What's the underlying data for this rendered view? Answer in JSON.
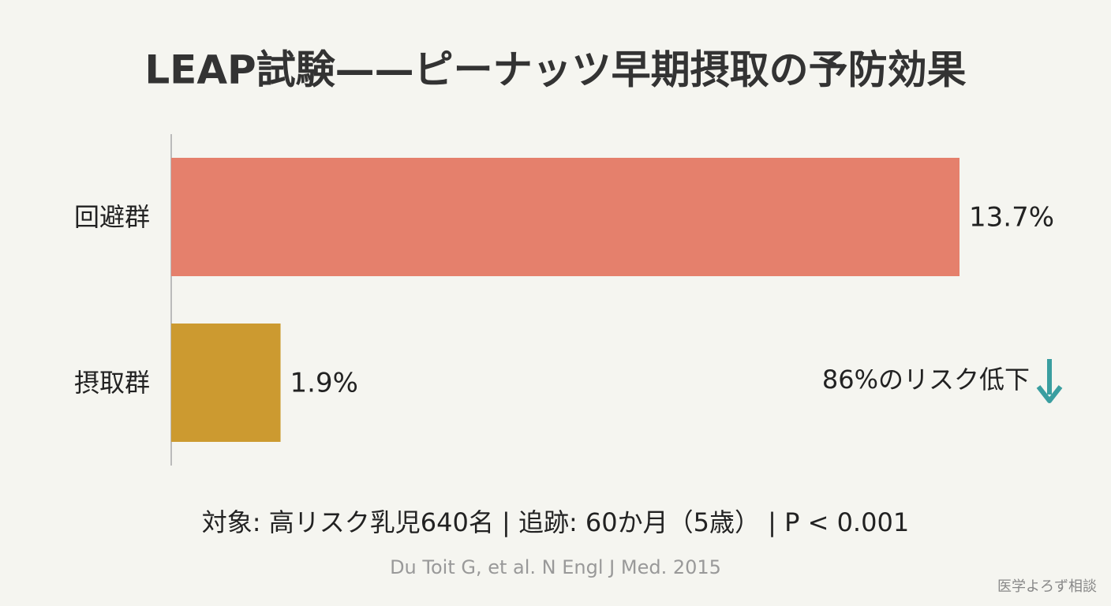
{
  "chart_data": {
    "type": "hbar",
    "title": "LEAP試験——ピーナッツ早期摂取の予防効果",
    "categories": [
      "回避群",
      "摂取群"
    ],
    "values": [
      13.7,
      1.9
    ],
    "value_labels": [
      "13.7%",
      "1.9%"
    ],
    "colors": [
      "#e5806c",
      "#cc9a30"
    ],
    "annotation": "86%のリスク低下",
    "annotation_color": "#3a9ea0",
    "footnote": "対象: 高リスク乳児640名 | 追跡: 60か月（5歳） | P < 0.001",
    "source": "Du Toit G, et al. N Engl J Med. 2015",
    "watermark": "医学よろず相談"
  }
}
